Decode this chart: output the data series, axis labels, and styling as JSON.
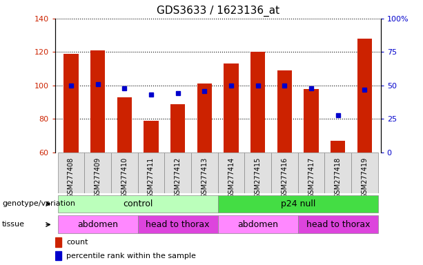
{
  "title": "GDS3633 / 1623136_at",
  "samples": [
    "GSM277408",
    "GSM277409",
    "GSM277410",
    "GSM277411",
    "GSM277412",
    "GSM277413",
    "GSM277414",
    "GSM277415",
    "GSM277416",
    "GSM277417",
    "GSM277418",
    "GSM277419"
  ],
  "counts": [
    119,
    121,
    93,
    79,
    89,
    101,
    113,
    120,
    109,
    98,
    67,
    128
  ],
  "percentile_ranks": [
    50,
    51,
    48,
    43,
    44,
    46,
    50,
    50,
    50,
    48,
    28,
    47
  ],
  "ylim_left": [
    60,
    140
  ],
  "ylim_right": [
    0,
    100
  ],
  "yticks_left": [
    60,
    80,
    100,
    120,
    140
  ],
  "yticks_right": [
    0,
    25,
    50,
    75,
    100
  ],
  "bar_color": "#cc2200",
  "dot_color": "#0000cc",
  "bar_bottom": 60,
  "genotype_groups": [
    {
      "label": "control",
      "start": 0,
      "end": 6,
      "color": "#bbffbb"
    },
    {
      "label": "p24 null",
      "start": 6,
      "end": 12,
      "color": "#44dd44"
    }
  ],
  "tissue_groups": [
    {
      "label": "abdomen",
      "start": 0,
      "end": 3,
      "color": "#ff88ff"
    },
    {
      "label": "head to thorax",
      "start": 3,
      "end": 6,
      "color": "#dd44dd"
    },
    {
      "label": "abdomen",
      "start": 6,
      "end": 9,
      "color": "#ff88ff"
    },
    {
      "label": "head to thorax",
      "start": 9,
      "end": 12,
      "color": "#dd44dd"
    }
  ],
  "legend_count_label": "count",
  "legend_pct_label": "percentile rank within the sample",
  "right_axis_color": "#0000cc",
  "left_axis_color": "#cc2200",
  "grid_style": "dotted",
  "label_fontsize": 8,
  "tick_fontsize": 8,
  "sample_fontsize": 7,
  "title_fontsize": 11,
  "band_fontsize": 9
}
